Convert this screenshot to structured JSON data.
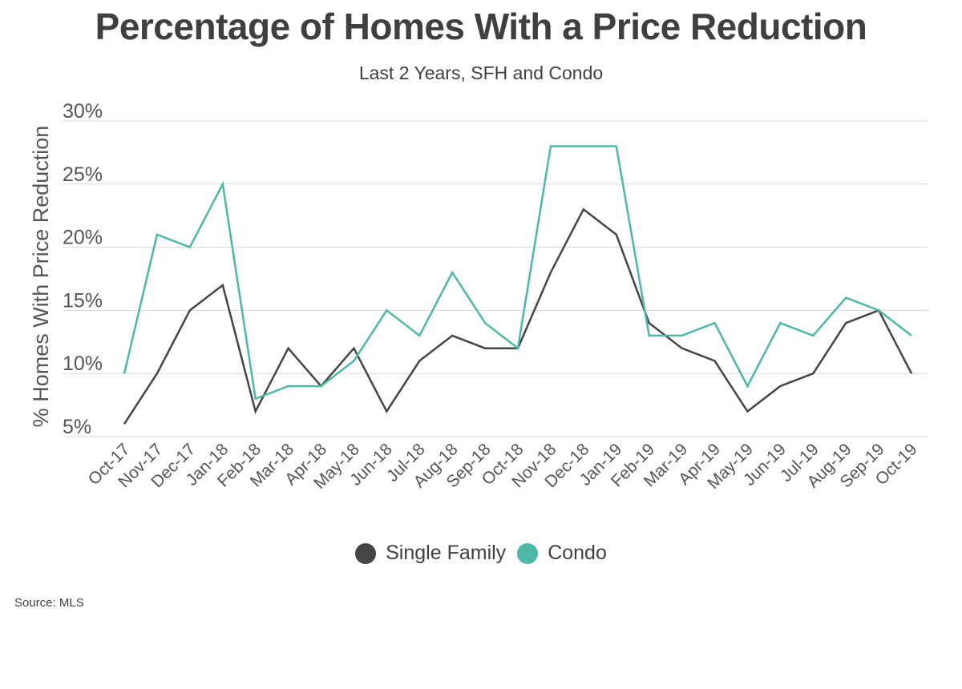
{
  "chart_data": {
    "type": "line",
    "title": "Percentage of Homes With a Price Reduction",
    "subtitle": "Last 2 Years, SFH and Condo",
    "ylabel": "% Homes With Price Reduction",
    "xlabel": "",
    "ylim": [
      5,
      30
    ],
    "yticks": [
      "5%",
      "10%",
      "15%",
      "20%",
      "25%",
      "30%"
    ],
    "ytick_values": [
      5,
      10,
      15,
      20,
      25,
      30
    ],
    "grid": "horizontal",
    "legend_position": "bottom",
    "categories": [
      "Oct-17",
      "Nov-17",
      "Dec-17",
      "Jan-18",
      "Feb-18",
      "Mar-18",
      "Apr-18",
      "May-18",
      "Jun-18",
      "Jul-18",
      "Aug-18",
      "Sep-18",
      "Oct-18",
      "Nov-18",
      "Dec-18",
      "Jan-19",
      "Feb-19",
      "Mar-19",
      "Apr-19",
      "May-19",
      "Jun-19",
      "Jul-19",
      "Aug-19",
      "Sep-19",
      "Oct-19"
    ],
    "series": [
      {
        "name": "Single Family",
        "color": "#454545",
        "values": [
          6,
          10,
          15,
          17,
          7,
          12,
          9,
          12,
          7,
          11,
          13,
          12,
          12,
          18,
          23,
          21,
          14,
          12,
          11,
          7,
          9,
          10,
          14,
          15,
          10
        ]
      },
      {
        "name": "Condo",
        "color": "#4db8a8",
        "values": [
          10,
          21,
          20,
          25,
          8,
          9,
          9,
          11,
          15,
          13,
          18,
          14,
          12,
          28,
          28,
          28,
          13,
          13,
          14,
          9,
          14,
          13,
          16,
          15,
          13
        ]
      }
    ]
  },
  "source": "Source:  MLS"
}
